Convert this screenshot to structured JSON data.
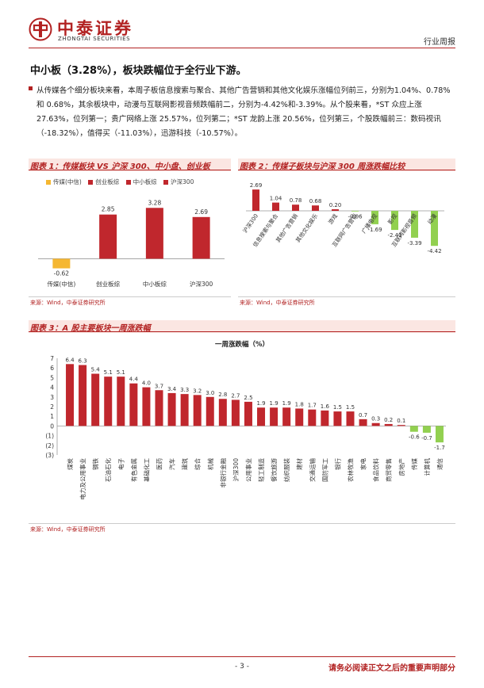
{
  "header": {
    "brand_cn": "中泰证券",
    "brand_en": "ZHONGTAI SECURITIES",
    "report_type": "行业周报",
    "brand_color": "#b22222"
  },
  "section": {
    "title": "中小板（3.28%），板块跌幅位于全行业下游。",
    "paragraph": "从传媒各个细分板块来看，本周子板信息搜索与聚合、其他广告营销和其他文化娱乐涨幅位列前三，分别为1.04%、0.78%和 0.68%，其余板块中，动漫与互联网影视音频跌幅前二，分别为-4.42%和-3.39%。从个股来看，*ST 众应上涨 27.63%，位列第一；贵广网络上涨 25.57%，位列第二；*ST 龙韵上涨 20.56%，位列第三，个股跌幅前三：数码视讯（-18.32%），值得买（-11.03%），迅游科技（-10.57%）。"
  },
  "figures": {
    "fig1": {
      "title": "图表 1：传媒板块 VS 沪深 300、中小盘、创业板",
      "source": "来源：Wind，中泰证券研究所"
    },
    "fig2": {
      "title": "图表 2：传媒子板块与沪深 300 周涨跌幅比较",
      "source": "来源：Wind，中泰证券研究所"
    },
    "fig3": {
      "title": "图表 3：A 股主要板块一周涨跌幅",
      "source": "来源：Wind，中泰证券研究所"
    }
  },
  "chart_data": [
    {
      "type": "bar",
      "title": "",
      "legend_position": "top",
      "series_legend": [
        {
          "name": "传媒(中信)",
          "color": "#f5b731"
        },
        {
          "name": "创业板综",
          "color": "#c0272d"
        },
        {
          "name": "中小板综",
          "color": "#c0272d"
        },
        {
          "name": "沪深300",
          "color": "#c0272d"
        }
      ],
      "categories": [
        "传媒(中信)",
        "创业板综",
        "中小板综",
        "沪深300"
      ],
      "values": [
        -0.62,
        2.85,
        3.28,
        2.69
      ],
      "labels": [
        "-0.62",
        "2.85",
        "3.28",
        "2.69"
      ],
      "colors": [
        "#f5b731",
        "#c0272d",
        "#c0272d",
        "#c0272d"
      ],
      "ylim": [
        -1,
        3.6
      ]
    },
    {
      "type": "bar",
      "title": "",
      "categories": [
        "沪深300",
        "信息搜索与聚合",
        "其他广告营销",
        "其他文化娱乐",
        "游戏",
        "互联网广告营销",
        "广播电视",
        "影视",
        "互联网影视音频",
        "动漫"
      ],
      "values": [
        2.69,
        1.04,
        0.78,
        0.68,
        0.2,
        -0.06,
        -1.69,
        -2.41,
        -3.39,
        -4.42
      ],
      "labels": [
        "2.69",
        "1.04",
        "0.78",
        "0.68",
        "0.20",
        "-0.06",
        "-1.69",
        "-2.41",
        "-3.39",
        "-4.42"
      ],
      "positive_color": "#c0272d",
      "negative_color": "#92d050",
      "ylim": [
        -4.6,
        3.0
      ]
    },
    {
      "type": "bar",
      "title": "一周涨跌幅（%）",
      "categories": [
        "煤炭",
        "电力及公用事业",
        "钢铁",
        "石油石化",
        "电子",
        "有色金属",
        "基础化工",
        "医药",
        "汽车",
        "建筑",
        "综合",
        "机械",
        "非银行金融",
        "沪深300",
        "公用事业",
        "轻工制造",
        "餐饮旅游",
        "纺织服装",
        "建材",
        "交通运输",
        "国防军工",
        "银行",
        "农林牧渔",
        "家电",
        "食品饮料",
        "商贸零售",
        "房地产",
        "传媒",
        "计算机",
        "通信"
      ],
      "values": [
        6.4,
        6.3,
        5.4,
        5.1,
        5.1,
        4.4,
        4.0,
        3.7,
        3.4,
        3.3,
        3.2,
        3.0,
        2.8,
        2.7,
        2.5,
        1.9,
        1.9,
        1.9,
        1.8,
        1.7,
        1.6,
        1.5,
        1.5,
        0.7,
        0.3,
        0.2,
        0.1,
        -0.6,
        -0.7,
        -1.7
      ],
      "labels": [
        "6.4",
        "6.3",
        "5.4",
        "5.1",
        "5.1",
        "4.4",
        "4.0",
        "3.7",
        "3.4",
        "3.3",
        "3.2",
        "3.0",
        "2.8",
        "2.7",
        "2.5",
        "1.9",
        "1.9",
        "1.9",
        "1.8",
        "1.7",
        "1.6",
        "1.5",
        "1.5",
        "0.7",
        "0.3",
        "0.2",
        "0.1",
        "-0.6",
        "-0.7",
        "-1.7"
      ],
      "positive_color": "#c0272d",
      "negative_color": "#92d050",
      "y_ticks": [
        "7",
        "6",
        "5",
        "4",
        "3",
        "2",
        "1",
        "0",
        "(1)",
        "(2)",
        "(3)"
      ],
      "ylim": [
        -3,
        7
      ]
    }
  ]
}
